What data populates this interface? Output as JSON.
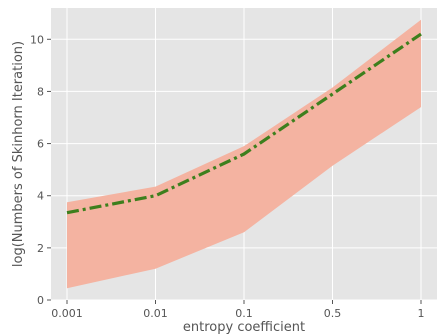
{
  "chart_data": {
    "type": "line",
    "xlabel": "entropy coefficient",
    "ylabel": "log(Numbers of Skinhorn Iteration)",
    "categories": [
      "0.001",
      "0.01",
      "0.1",
      "0.5",
      "1"
    ],
    "ylim": [
      0,
      11.2
    ],
    "yticks": [
      "0",
      "2",
      "4",
      "6",
      "8",
      "10"
    ],
    "grid": true,
    "series": [
      {
        "style": "dash-dot",
        "color": "#3d7f1d",
        "values": [
          3.35,
          4.0,
          5.6,
          7.9,
          10.2
        ]
      }
    ],
    "band": {
      "color": "#f4b3a1",
      "lower": [
        0.45,
        1.2,
        2.6,
        5.15,
        7.4
      ],
      "upper": [
        3.75,
        4.35,
        5.9,
        8.15,
        10.75
      ]
    },
    "colors": {
      "plot_background": "#e5e5e5",
      "grid": "#ffffff",
      "text": "#555555"
    }
  }
}
